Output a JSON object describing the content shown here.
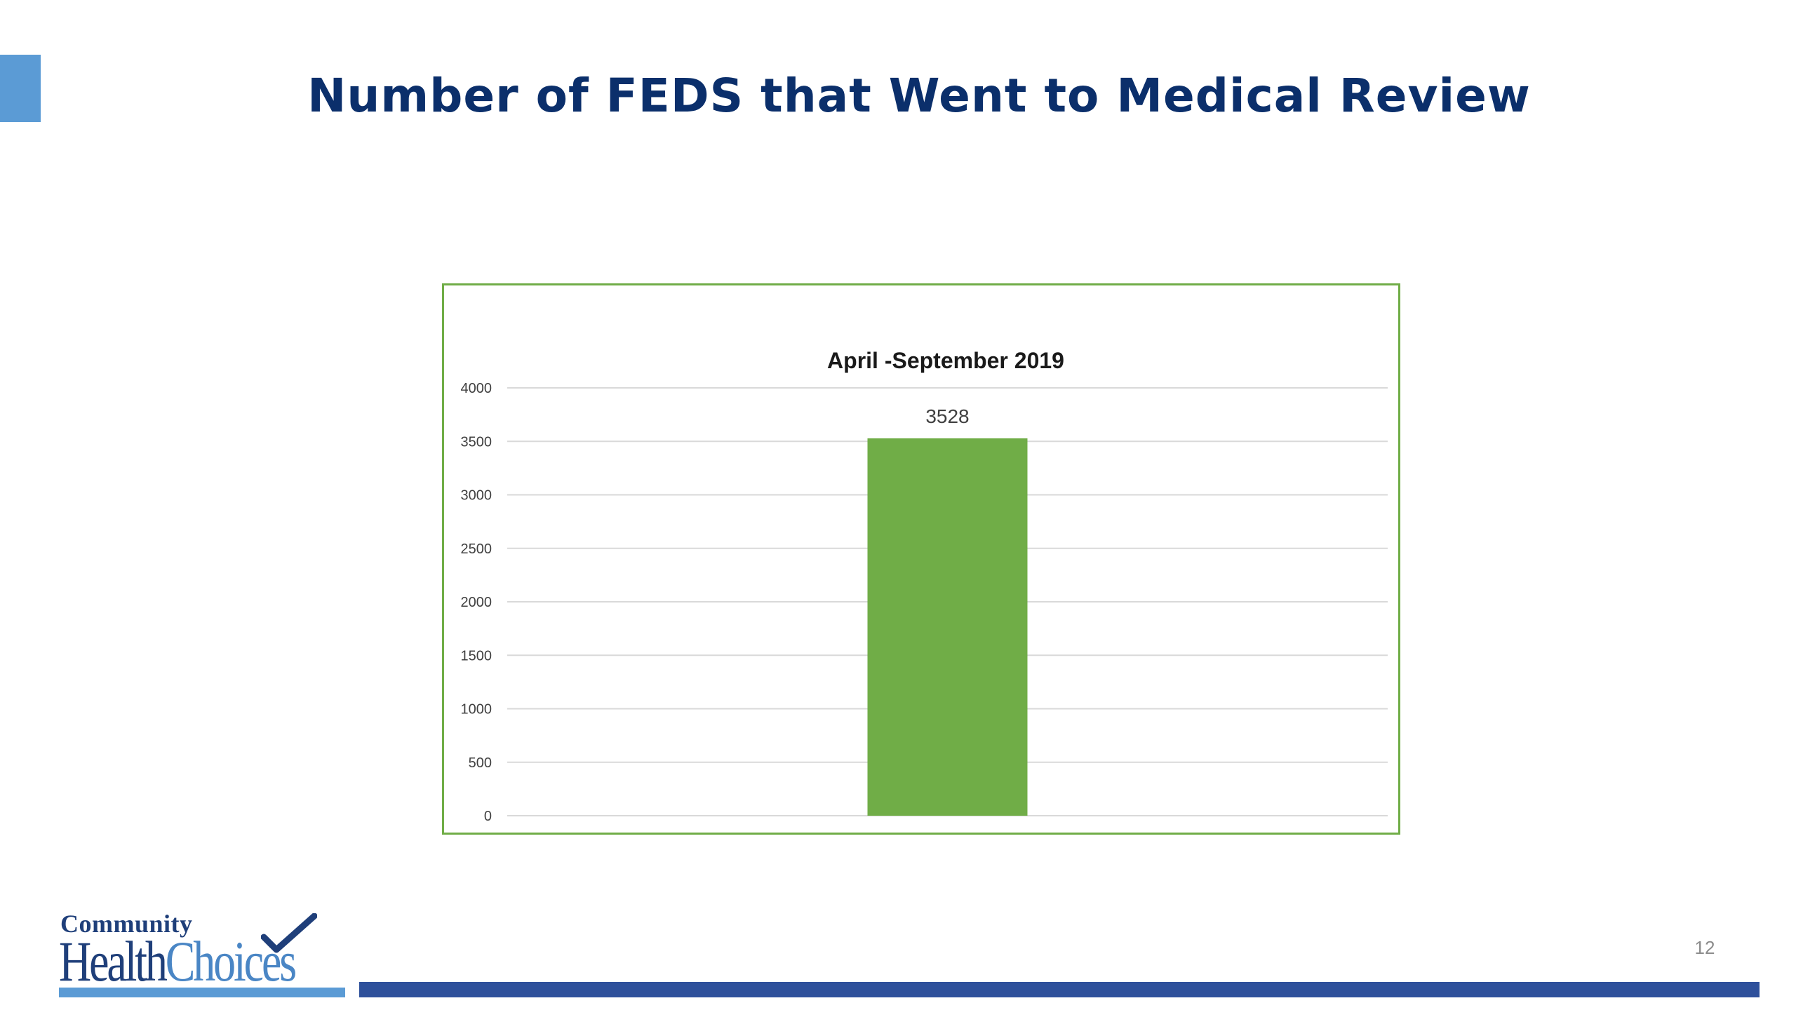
{
  "slide": {
    "title": "Number of FEDS that Went to Medical Review",
    "page_number": "12"
  },
  "logo": {
    "community": "Community",
    "health": "Health",
    "choices": "Choices"
  },
  "colors": {
    "title": "#0b2f6b",
    "accent_block": "#5b9bd5",
    "chart_border": "#70ad47",
    "bar": "#70ad47",
    "footer_bar": "#2e509b"
  },
  "chart_data": {
    "type": "bar",
    "title": "April -September 2019",
    "categories": [
      ""
    ],
    "values": [
      3528
    ],
    "data_labels": [
      "3528"
    ],
    "ylim": [
      0,
      4000
    ],
    "yticks": [
      0,
      500,
      1000,
      1500,
      2000,
      2500,
      3000,
      3500,
      4000
    ],
    "xlabel": "",
    "ylabel": "",
    "grid": true,
    "legend": "none"
  }
}
